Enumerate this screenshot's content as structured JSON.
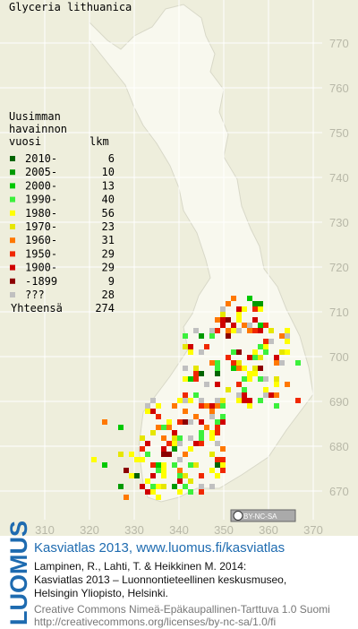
{
  "header": {
    "title": "Glyceria lithuanica"
  },
  "grid": {
    "y_labels": [
      770,
      760,
      750,
      740,
      730,
      720,
      710,
      700,
      690,
      680,
      670
    ],
    "x_labels": [
      310,
      320,
      330,
      340,
      350,
      360,
      370
    ]
  },
  "legend": {
    "heading": [
      "Uusimman",
      "havainnon",
      "vuosi"
    ],
    "count_heading": "lkm",
    "entries": [
      {
        "label": "2010-",
        "count": 6,
        "color": "#006400"
      },
      {
        "label": "2005-",
        "count": 10,
        "color": "#009a00"
      },
      {
        "label": "2000-",
        "count": 13,
        "color": "#00c800"
      },
      {
        "label": "1990-",
        "count": 40,
        "color": "#3cf03c"
      },
      {
        "label": "1980-",
        "count": 56,
        "color": "#ffff00"
      },
      {
        "label": "1970-",
        "count": 23,
        "color": "#e6e600"
      },
      {
        "label": "1960-",
        "count": 31,
        "color": "#ff7800"
      },
      {
        "label": "1950-",
        "count": 29,
        "color": "#f02800"
      },
      {
        "label": "1900-",
        "count": 29,
        "color": "#d00000"
      },
      {
        "label": "-1899",
        "count": 9,
        "color": "#8c0000"
      },
      {
        "label": "???",
        "count": 28,
        "color": "#c0c0c0"
      }
    ],
    "total": {
      "label": "Yhteensä",
      "value": 274
    }
  },
  "badge": "BY-NC-SA",
  "footer": {
    "logo": "LUOMUS",
    "link": "Kasviatlas 2013, www.luomus.fi/kasviatlas",
    "citation": [
      "Lampinen, R., Lahti, T. & Heikkinen M. 2014:",
      "Kasviatlas 2013 – Luonnontieteellinen keskusmuseo,",
      "Helsingin Yliopisto, Helsinki."
    ],
    "license": [
      "Creative Commons Nimeä-Epäkaupallinen-Tarttuva 1.0 Suomi",
      "http://creativecommons.org/licenses/by-nc-sa/1.0/fi"
    ]
  }
}
